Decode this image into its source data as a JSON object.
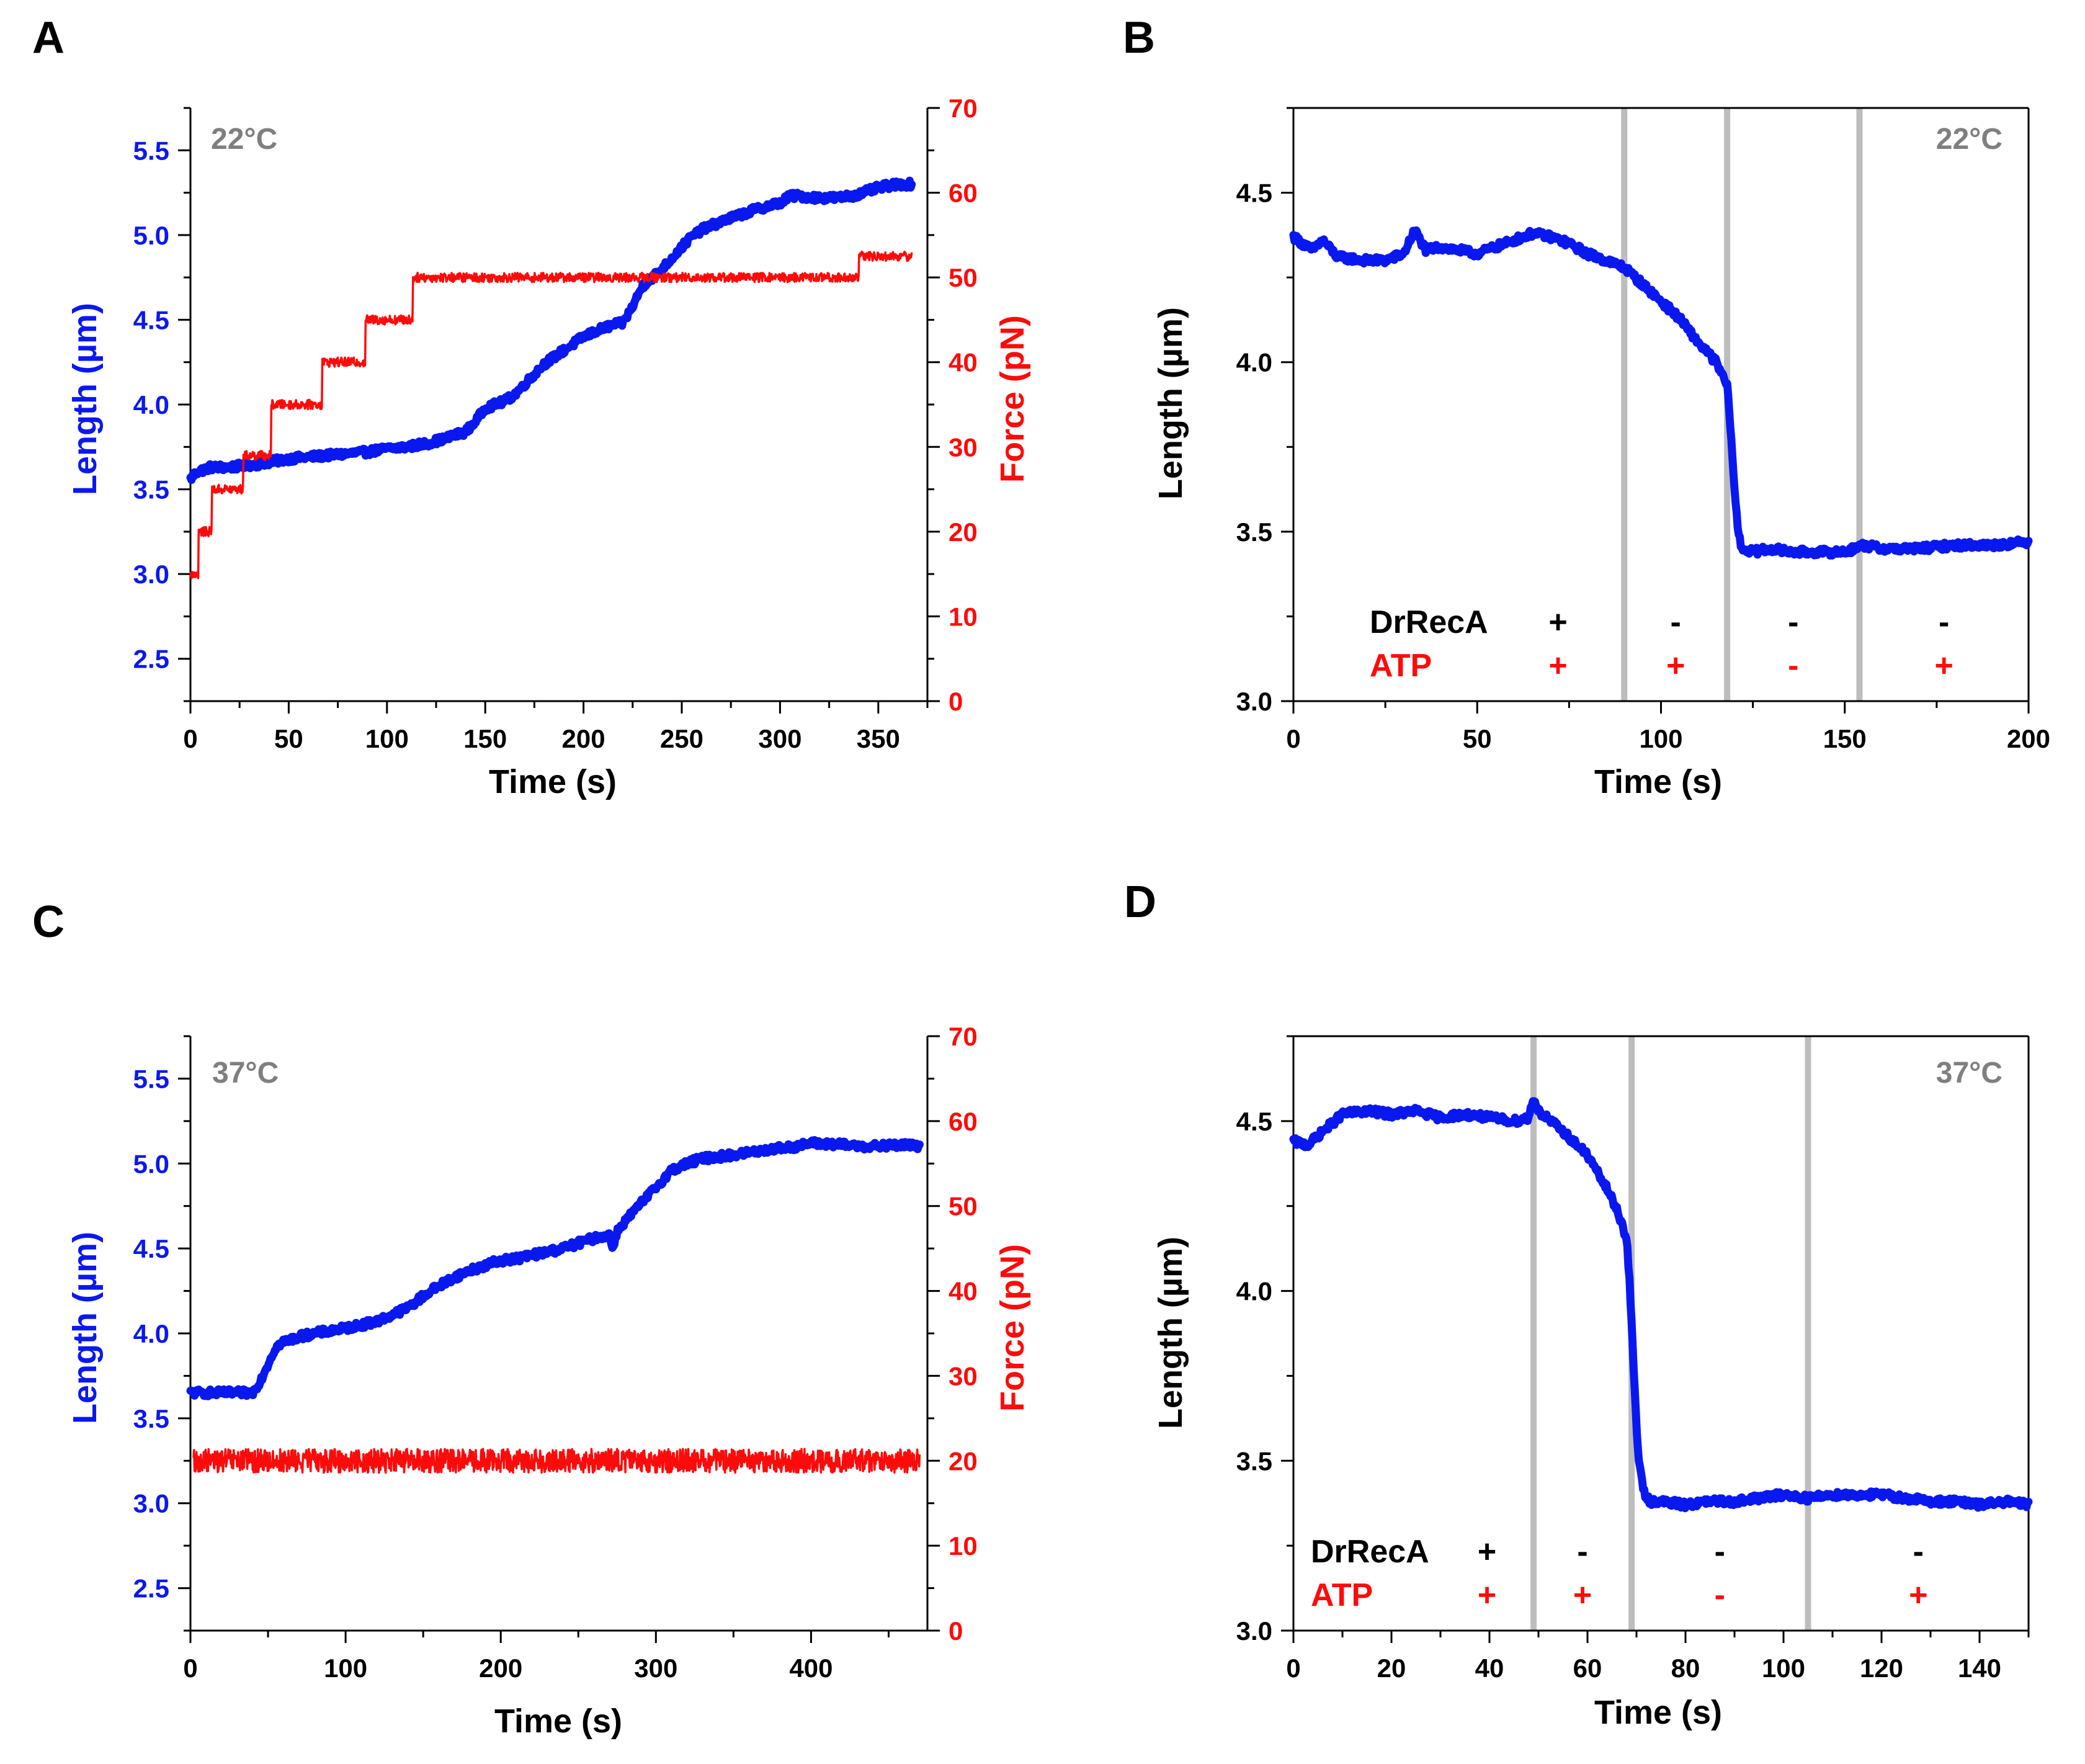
{
  "colors": {
    "length": "#0a18f0",
    "force": "#ff0a0a",
    "axis": "#000000",
    "temp_text": "#7f7f7f",
    "exchange_band": "#bdbdbd"
  },
  "panels": {
    "A": {
      "letter": "A"
    },
    "B": {
      "letter": "B"
    },
    "C": {
      "letter": "C"
    },
    "D": {
      "letter": "D"
    }
  },
  "chart_data": [
    {
      "panel": "A",
      "type": "line",
      "temperature": "22°C",
      "xlabel": "Time (s)",
      "ylabel": "Length (µm)",
      "y2label": "Force (pN)",
      "xlim": [
        0,
        375
      ],
      "ylim": [
        2.25,
        5.75
      ],
      "y2lim": [
        0,
        70
      ],
      "xticks": [
        0,
        50,
        100,
        150,
        200,
        250,
        300,
        350
      ],
      "yticks": [
        2.5,
        3.0,
        3.5,
        4.0,
        4.5,
        5.0,
        5.5
      ],
      "y2ticks": [
        0,
        10,
        20,
        30,
        40,
        50,
        60,
        70
      ],
      "series": [
        {
          "axis": "left",
          "x": [
            0,
            3,
            10,
            20,
            35,
            50,
            60,
            70,
            80,
            90,
            100,
            110,
            120,
            130,
            140,
            145,
            150,
            160,
            165,
            170,
            175,
            180,
            190,
            200,
            210,
            215,
            220,
            225,
            230,
            240,
            250,
            255,
            260,
            270,
            280,
            290,
            300,
            305,
            310,
            320,
            330,
            340,
            350,
            360,
            367
          ],
          "y": [
            3.56,
            3.6,
            3.63,
            3.63,
            3.65,
            3.68,
            3.69,
            3.7,
            3.71,
            3.72,
            3.74,
            3.75,
            3.77,
            3.8,
            3.84,
            3.9,
            3.98,
            4.02,
            4.06,
            4.12,
            4.18,
            4.24,
            4.32,
            4.4,
            4.45,
            4.47,
            4.48,
            4.58,
            4.7,
            4.8,
            4.93,
            4.99,
            5.03,
            5.08,
            5.12,
            5.16,
            5.19,
            5.23,
            5.23,
            5.22,
            5.22,
            5.24,
            5.28,
            5.3,
            5.3
          ]
        },
        {
          "axis": "right",
          "steps": [
            [
              0,
              15
            ],
            [
              4,
              20
            ],
            [
              11,
              25
            ],
            [
              27,
              29
            ],
            [
              41,
              35
            ],
            [
              67,
              40
            ],
            [
              89,
              45
            ],
            [
              113,
              50
            ],
            [
              340,
              52.5
            ]
          ],
          "end": 367
        }
      ]
    },
    {
      "panel": "B",
      "type": "line",
      "temperature": "22°C",
      "xlabel": "Time (s)",
      "ylabel": "Length (µm)",
      "xlim": [
        0,
        200
      ],
      "ylim": [
        3.0,
        4.75
      ],
      "xticks": [
        0,
        50,
        100,
        150,
        200
      ],
      "yticks": [
        3.0,
        3.5,
        4.0,
        4.5
      ],
      "exchange_times": [
        90,
        118,
        154
      ],
      "conditions": {
        "DrRecA": [
          "+",
          "-",
          "-",
          "-"
        ],
        "ATP": [
          "+",
          "+",
          "-",
          "+"
        ]
      },
      "series": [
        {
          "axis": "left",
          "x": [
            0,
            5,
            8,
            12,
            20,
            25,
            30,
            33,
            36,
            40,
            45,
            50,
            55,
            60,
            65,
            70,
            75,
            80,
            85,
            90,
            95,
            100,
            105,
            110,
            115,
            118,
            119,
            120,
            121,
            122,
            125,
            130,
            135,
            140,
            145,
            150,
            155,
            160,
            170,
            180,
            190,
            200
          ],
          "y": [
            4.37,
            4.33,
            4.36,
            4.31,
            4.3,
            4.3,
            4.32,
            4.39,
            4.33,
            4.34,
            4.33,
            4.32,
            4.34,
            4.36,
            4.38,
            4.37,
            4.35,
            4.32,
            4.3,
            4.28,
            4.23,
            4.18,
            4.13,
            4.06,
            4.0,
            3.93,
            3.8,
            3.62,
            3.5,
            3.45,
            3.44,
            3.45,
            3.44,
            3.44,
            3.44,
            3.44,
            3.46,
            3.45,
            3.45,
            3.46,
            3.46,
            3.47
          ]
        }
      ]
    },
    {
      "panel": "C",
      "type": "line",
      "temperature": "37°C",
      "xlabel": "Time (s)",
      "ylabel": "Length (µm)",
      "y2label": "Force (pN)",
      "xlim": [
        0,
        475
      ],
      "ylim": [
        2.25,
        5.75
      ],
      "y2lim": [
        0,
        70
      ],
      "xticks": [
        0,
        100,
        200,
        300,
        400
      ],
      "yticks": [
        2.5,
        3.0,
        3.5,
        4.0,
        4.5,
        5.0,
        5.5
      ],
      "y2ticks": [
        0,
        10,
        20,
        30,
        40,
        50,
        60,
        70
      ],
      "series": [
        {
          "axis": "left",
          "x": [
            0,
            20,
            40,
            45,
            50,
            55,
            60,
            70,
            80,
            100,
            120,
            140,
            150,
            160,
            170,
            180,
            190,
            200,
            210,
            220,
            240,
            260,
            270,
            272,
            275,
            280,
            290,
            300,
            310,
            320,
            330,
            350,
            370,
            390,
            400,
            420,
            440,
            460,
            470
          ],
          "y": [
            3.65,
            3.65,
            3.65,
            3.72,
            3.82,
            3.92,
            3.95,
            3.98,
            4.0,
            4.03,
            4.07,
            4.15,
            4.22,
            4.28,
            4.33,
            4.37,
            4.4,
            4.43,
            4.44,
            4.46,
            4.5,
            4.56,
            4.58,
            4.5,
            4.6,
            4.66,
            4.76,
            4.86,
            4.96,
            5.0,
            5.03,
            5.05,
            5.08,
            5.1,
            5.12,
            5.11,
            5.1,
            5.11,
            5.1
          ]
        },
        {
          "axis": "right",
          "mean": 20,
          "noise": 1.4,
          "start": 2,
          "end": 470
        }
      ]
    },
    {
      "panel": "D",
      "type": "line",
      "temperature": "37°C",
      "xlabel": "Time (s)",
      "ylabel": "Length (µm)",
      "xlim": [
        0,
        150
      ],
      "ylim": [
        3.0,
        4.75
      ],
      "xticks": [
        0,
        20,
        40,
        60,
        80,
        100,
        120,
        140
      ],
      "yticks": [
        3.0,
        3.5,
        4.0,
        4.5
      ],
      "exchange_times": [
        49,
        69,
        105
      ],
      "conditions": {
        "DrRecA": [
          "+",
          "-",
          "-",
          "-"
        ],
        "ATP": [
          "+",
          "+",
          "-",
          "+"
        ]
      },
      "series": [
        {
          "axis": "left",
          "x": [
            0,
            3,
            6,
            10,
            15,
            20,
            25,
            30,
            35,
            40,
            45,
            48,
            49,
            50,
            55,
            60,
            62,
            64,
            66,
            67,
            68,
            68.5,
            69,
            69.5,
            70,
            70.5,
            71,
            71.5,
            72,
            73,
            75,
            80,
            85,
            90,
            95,
            100,
            105,
            110,
            115,
            120,
            125,
            130,
            135,
            140,
            145,
            150
          ],
          "y": [
            4.44,
            4.43,
            4.47,
            4.52,
            4.53,
            4.52,
            4.53,
            4.51,
            4.52,
            4.51,
            4.5,
            4.51,
            4.57,
            4.53,
            4.47,
            4.4,
            4.35,
            4.3,
            4.24,
            4.2,
            4.15,
            4.05,
            3.9,
            3.75,
            3.6,
            3.5,
            3.45,
            3.41,
            3.39,
            3.38,
            3.38,
            3.37,
            3.38,
            3.38,
            3.39,
            3.4,
            3.39,
            3.4,
            3.4,
            3.4,
            3.39,
            3.38,
            3.38,
            3.37,
            3.38,
            3.37
          ]
        }
      ]
    }
  ]
}
